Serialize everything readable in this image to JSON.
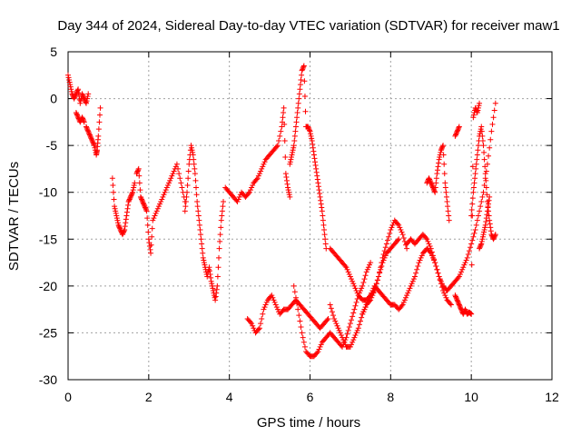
{
  "chart_data": {
    "type": "scatter",
    "title": "Day 344 of 2024, Sidereal Day-to-day VTEC variation (SDTVAR) for receiver maw1",
    "xlabel": "GPS time / hours",
    "ylabel": "SDTVAR / TECUs",
    "xlim": [
      0,
      12
    ],
    "ylim": [
      -30,
      5
    ],
    "xticks": [
      0,
      2,
      4,
      6,
      8,
      10,
      12
    ],
    "yticks": [
      5,
      0,
      -5,
      -10,
      -15,
      -20,
      -25,
      -30
    ],
    "grid": true,
    "marker": "+",
    "marker_color": "#ff0000",
    "series": [
      {
        "name": "seg1",
        "x": [
          0.0,
          0.05,
          0.1,
          0.15,
          0.2,
          0.25,
          0.3,
          0.35,
          0.4,
          0.45,
          0.5
        ],
        "y": [
          2.5,
          1.5,
          0.5,
          0.0,
          0.5,
          1.0,
          -0.5,
          0.5,
          0.0,
          -0.5,
          0.5
        ]
      },
      {
        "name": "seg2",
        "x": [
          0.2,
          0.25,
          0.3,
          0.35,
          0.4
        ],
        "y": [
          -1.5,
          -2.0,
          -2.5,
          -2.0,
          -2.5
        ]
      },
      {
        "name": "seg3",
        "x": [
          0.45,
          0.5,
          0.55,
          0.6,
          0.65,
          0.7,
          0.72,
          0.75,
          0.8
        ],
        "y": [
          -3.0,
          -3.5,
          -4.0,
          -4.5,
          -5.0,
          -6.0,
          -5.5,
          -4.0,
          -1.0
        ]
      },
      {
        "name": "seg4",
        "x": [
          1.1,
          1.15,
          1.2,
          1.25,
          1.3,
          1.35,
          1.4,
          1.45,
          1.5,
          1.55,
          1.6,
          1.65
        ],
        "y": [
          -8.5,
          -11.5,
          -12.5,
          -13.5,
          -14.0,
          -14.5,
          -14.0,
          -12.5,
          -11.0,
          -10.5,
          -10.0,
          -9.0
        ]
      },
      {
        "name": "seg5",
        "x": [
          1.7,
          1.75,
          1.8,
          1.85,
          1.9,
          1.95,
          2.0,
          2.05,
          2.1,
          2.2,
          2.3,
          2.4,
          2.5,
          2.6,
          2.7,
          2.8,
          2.9
        ],
        "y": [
          -8.0,
          -7.5,
          -10.5,
          -11.0,
          -11.5,
          -12.0,
          -15.0,
          -16.5,
          -13.0,
          -12.0,
          -11.0,
          -10.0,
          -9.0,
          -8.0,
          -7.0,
          -9.0,
          -11.0
        ]
      },
      {
        "name": "seg6",
        "x": [
          2.9,
          2.95,
          3.0,
          3.05,
          3.1,
          3.15,
          3.2,
          3.25,
          3.3,
          3.35,
          3.4,
          3.45,
          3.5,
          3.55,
          3.6,
          3.65,
          3.7,
          3.75,
          3.8,
          3.85
        ],
        "y": [
          -12.0,
          -10.0,
          -7.0,
          -5.0,
          -6.0,
          -8.0,
          -11.0,
          -13.0,
          -15.0,
          -17.0,
          -18.0,
          -19.0,
          -18.0,
          -19.5,
          -20.5,
          -21.5,
          -20.0,
          -16.0,
          -13.0,
          -11.0
        ]
      },
      {
        "name": "seg7",
        "x": [
          3.9,
          4.0,
          4.1,
          4.2,
          4.3,
          4.4,
          4.5,
          4.6,
          4.7,
          4.8,
          4.9,
          5.0,
          5.1,
          5.2,
          5.3,
          5.35,
          5.4,
          5.45,
          5.5
        ],
        "y": [
          -9.5,
          -10.0,
          -10.5,
          -11.0,
          -10.0,
          -10.5,
          -10.0,
          -9.0,
          -8.5,
          -7.5,
          -6.5,
          -6.0,
          -5.5,
          -5.0,
          -3.0,
          -1.0,
          -8.0,
          -9.5,
          -10.5
        ]
      },
      {
        "name": "seg8",
        "x": [
          4.45,
          4.55,
          4.65,
          4.75,
          4.85,
          4.95,
          5.05,
          5.15,
          5.25,
          5.35,
          5.45,
          5.55,
          5.65,
          5.75,
          5.85,
          5.95,
          6.05,
          6.15,
          6.25,
          6.35,
          6.45
        ],
        "y": [
          -23.5,
          -24.0,
          -25.0,
          -24.5,
          -22.5,
          -21.5,
          -21.0,
          -22.0,
          -23.0,
          -22.5,
          -22.5,
          -22.0,
          -21.5,
          -22.0,
          -22.5,
          -23.0,
          -23.5,
          -24.0,
          -24.5,
          -24.0,
          -23.5
        ]
      },
      {
        "name": "seg9",
        "x": [
          5.5,
          5.55,
          5.6,
          5.65,
          5.7,
          5.75,
          5.8,
          5.85,
          5.9,
          5.95,
          6.0,
          6.05,
          6.1,
          6.15,
          6.2,
          6.25,
          6.3,
          6.35,
          6.4
        ],
        "y": [
          -7.0,
          -6.0,
          -5.0,
          -3.0,
          -1.0,
          1.0,
          3.0,
          3.5,
          -3.0,
          -3.0,
          -3.5,
          -4.5,
          -6.0,
          -7.5,
          -9.0,
          -10.5,
          -12.0,
          -14.0,
          -16.0
        ]
      },
      {
        "name": "seg10",
        "x": [
          5.6,
          5.7,
          5.8,
          5.9,
          6.0,
          6.1,
          6.2,
          6.3,
          6.4,
          6.5,
          6.6,
          6.7,
          6.8,
          6.9,
          7.0,
          7.1,
          7.2,
          7.3,
          7.4,
          7.5
        ],
        "y": [
          -20.0,
          -22.5,
          -25.0,
          -27.0,
          -27.5,
          -27.5,
          -27.0,
          -26.0,
          -25.5,
          -25.0,
          -25.5,
          -26.0,
          -26.5,
          -25.5,
          -24.0,
          -22.5,
          -21.0,
          -20.0,
          -18.5,
          -17.5
        ]
      },
      {
        "name": "seg11",
        "x": [
          6.5,
          6.6,
          6.7,
          6.8,
          6.9,
          7.0,
          7.1,
          7.2,
          7.3,
          7.4,
          7.5,
          7.6,
          7.7,
          7.8,
          7.9,
          8.0,
          8.1,
          8.2,
          8.3,
          8.4
        ],
        "y": [
          -16.0,
          -16.5,
          -17.0,
          -17.5,
          -18.0,
          -19.0,
          -20.0,
          -21.0,
          -21.5,
          -21.5,
          -21.0,
          -20.5,
          -19.0,
          -17.0,
          -15.5,
          -14.0,
          -13.0,
          -13.5,
          -14.5,
          -16.0
        ]
      },
      {
        "name": "seg12",
        "x": [
          6.5,
          6.6,
          6.7,
          6.8,
          6.9,
          7.0,
          7.1,
          7.2,
          7.3,
          7.4,
          7.5,
          7.6,
          7.7,
          7.8,
          7.9,
          8.0,
          8.1,
          8.2
        ],
        "y": [
          -22.0,
          -23.5,
          -24.5,
          -25.5,
          -26.5,
          -26.5,
          -25.5,
          -24.5,
          -23.0,
          -22.0,
          -21.5,
          -20.5,
          -19.0,
          -17.5,
          -16.5,
          -16.0,
          -15.5,
          -15.0
        ]
      },
      {
        "name": "seg13",
        "x": [
          7.3,
          7.4,
          7.5,
          7.6,
          7.7,
          7.8,
          7.9,
          8.0,
          8.1,
          8.2,
          8.3,
          8.4,
          8.5,
          8.6,
          8.7,
          8.8,
          8.9,
          9.0,
          9.1,
          9.2,
          9.3,
          9.4,
          9.5
        ],
        "y": [
          -23.0,
          -22.0,
          -21.0,
          -20.0,
          -20.5,
          -21.0,
          -21.5,
          -22.0,
          -22.0,
          -22.5,
          -22.0,
          -21.0,
          -20.0,
          -19.0,
          -17.5,
          -16.5,
          -16.0,
          -16.5,
          -17.5,
          -19.0,
          -20.5,
          -21.5,
          -22.0
        ]
      },
      {
        "name": "seg14",
        "x": [
          8.4,
          8.5,
          8.6,
          8.7,
          8.8,
          8.9,
          9.0,
          9.1,
          9.2,
          9.3,
          9.4,
          9.5,
          9.6,
          9.7,
          9.8,
          9.9,
          10.0,
          10.1,
          10.2,
          10.3,
          10.4,
          10.5,
          10.6
        ],
        "y": [
          -15.5,
          -15.0,
          -15.5,
          -15.0,
          -14.5,
          -15.0,
          -16.0,
          -17.5,
          -19.0,
          -20.0,
          -20.5,
          -20.0,
          -19.5,
          -19.0,
          -18.0,
          -17.0,
          -15.5,
          -14.0,
          -12.0,
          -10.0,
          -7.0,
          -3.5,
          -0.5
        ]
      },
      {
        "name": "seg15",
        "x": [
          8.9,
          8.95,
          9.0,
          9.05,
          9.1,
          9.15,
          9.2,
          9.25,
          9.3,
          9.35,
          9.4,
          9.45
        ],
        "y": [
          -9.0,
          -8.5,
          -9.0,
          -9.5,
          -10.0,
          -8.0,
          -6.5,
          -5.5,
          -5.0,
          -9.0,
          -11.0,
          -13.0
        ]
      },
      {
        "name": "seg16",
        "x": [
          9.6,
          9.65,
          9.7,
          9.75,
          9.8,
          9.85,
          9.9,
          9.95,
          10.0,
          10.05,
          10.1,
          10.15,
          10.2
        ],
        "y": [
          -21.0,
          -21.5,
          -22.0,
          -22.5,
          -23.0,
          -22.5,
          -23.0,
          -22.8,
          -23.0,
          -2.0,
          -1.0,
          -1.5,
          -0.5
        ]
      },
      {
        "name": "seg17",
        "x": [
          10.0,
          10.05,
          10.1,
          10.15,
          10.2,
          10.25,
          10.3,
          10.35,
          10.4,
          10.45,
          10.5,
          10.55,
          10.6
        ],
        "y": [
          -12.5,
          -10.0,
          -8.0,
          -6.0,
          -4.0,
          -3.0,
          -5.0,
          -8.0,
          -11.0,
          -13.0,
          -14.5,
          -15.0,
          -14.5
        ]
      },
      {
        "name": "seg18",
        "x": [
          9.6,
          9.65,
          9.7
        ],
        "y": [
          -4.0,
          -3.5,
          -3.0
        ]
      },
      {
        "name": "seg19",
        "x": [
          10.2,
          10.25,
          10.3,
          10.35,
          10.4,
          10.45
        ],
        "y": [
          -16.0,
          -15.5,
          -14.5,
          -13.5,
          -12.0,
          -10.5
        ]
      }
    ]
  }
}
